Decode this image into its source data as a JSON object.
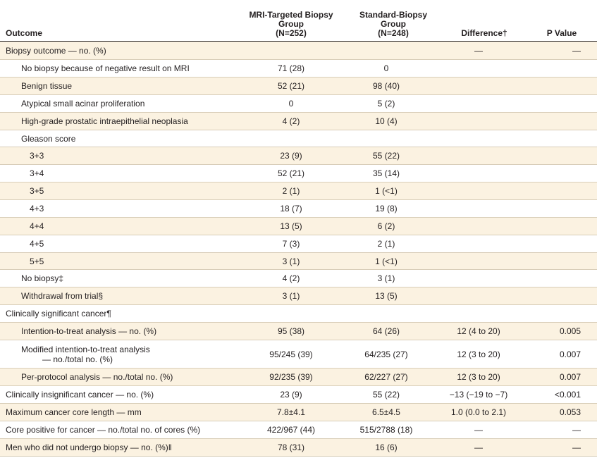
{
  "header": {
    "outcome": "Outcome",
    "mri_line1": "MRI-Targeted Biopsy",
    "mri_line2": "Group",
    "mri_line3": "(N=252)",
    "std_line1": "Standard-Biopsy",
    "std_line2": "Group",
    "std_line3": "(N=248)",
    "difference": "Difference†",
    "pvalue": "P Value"
  },
  "rows": [
    {
      "label": "Biopsy outcome — no. (%)",
      "mri": "",
      "std": "",
      "diff": "—",
      "p": "—"
    },
    {
      "label": "No biopsy because of negative result on MRI",
      "mri": "71 (28)",
      "std": "0",
      "diff": "",
      "p": ""
    },
    {
      "label": "Benign tissue",
      "mri": "52 (21)",
      "std": "98 (40)",
      "diff": "",
      "p": ""
    },
    {
      "label": "Atypical small acinar proliferation",
      "mri": "0",
      "std": "5 (2)",
      "diff": "",
      "p": ""
    },
    {
      "label": "High-grade prostatic intraepithelial neoplasia",
      "mri": "4 (2)",
      "std": "10 (4)",
      "diff": "",
      "p": ""
    },
    {
      "label": "Gleason score",
      "mri": "",
      "std": "",
      "diff": "",
      "p": ""
    },
    {
      "label": "3+3",
      "mri": "23 (9)",
      "std": "55 (22)",
      "diff": "",
      "p": ""
    },
    {
      "label": "3+4",
      "mri": "52 (21)",
      "std": "35 (14)",
      "diff": "",
      "p": ""
    },
    {
      "label": "3+5",
      "mri": "2 (1)",
      "std": "1 (<1)",
      "diff": "",
      "p": ""
    },
    {
      "label": "4+3",
      "mri": "18 (7)",
      "std": "19 (8)",
      "diff": "",
      "p": ""
    },
    {
      "label": "4+4",
      "mri": "13 (5)",
      "std": "6 (2)",
      "diff": "",
      "p": ""
    },
    {
      "label": "4+5",
      "mri": "7 (3)",
      "std": "2 (1)",
      "diff": "",
      "p": ""
    },
    {
      "label": "5+5",
      "mri": "3 (1)",
      "std": "1 (<1)",
      "diff": "",
      "p": ""
    },
    {
      "label": "No biopsy‡",
      "mri": "4 (2)",
      "std": "3 (1)",
      "diff": "",
      "p": ""
    },
    {
      "label": "Withdrawal from trial§",
      "mri": "3 (1)",
      "std": "13 (5)",
      "diff": "",
      "p": ""
    },
    {
      "label": "Clinically significant cancer¶",
      "mri": "",
      "std": "",
      "diff": "",
      "p": ""
    },
    {
      "label": "Intention-to-treat analysis — no. (%)",
      "mri": "95 (38)",
      "std": "64 (26)",
      "diff": "12 (4 to 20)",
      "p": "0.005"
    },
    {
      "label": "Modified intention-to-treat analysis",
      "label2": "— no./total no. (%)",
      "mri": "95/245 (39)",
      "std": "64/235 (27)",
      "diff": "12 (3 to 20)",
      "p": "0.007"
    },
    {
      "label": "Per-protocol analysis — no./total no. (%)",
      "mri": "92/235 (39)",
      "std": "62/227 (27)",
      "diff": "12 (3 to 20)",
      "p": "0.007"
    },
    {
      "label": "Clinically insignificant cancer — no. (%)",
      "mri": "23 (9)",
      "std": "55 (22)",
      "diff": "−13 (−19 to −7)",
      "p": "<0.001"
    },
    {
      "label": "Maximum cancer core length — mm",
      "mri": "7.8±4.1",
      "std": "6.5±4.5",
      "diff": "1.0 (0.0 to 2.1)",
      "p": "0.053"
    },
    {
      "label": "Core positive for cancer — no./total no. of cores (%)",
      "mri": "422/967 (44)",
      "std": "515/2788 (18)",
      "diff": "—",
      "p": "—"
    },
    {
      "label": "Men who did not undergo biopsy — no. (%)‖",
      "mri": "78 (31)",
      "std": "16 (6)",
      "diff": "—",
      "p": "—"
    }
  ]
}
